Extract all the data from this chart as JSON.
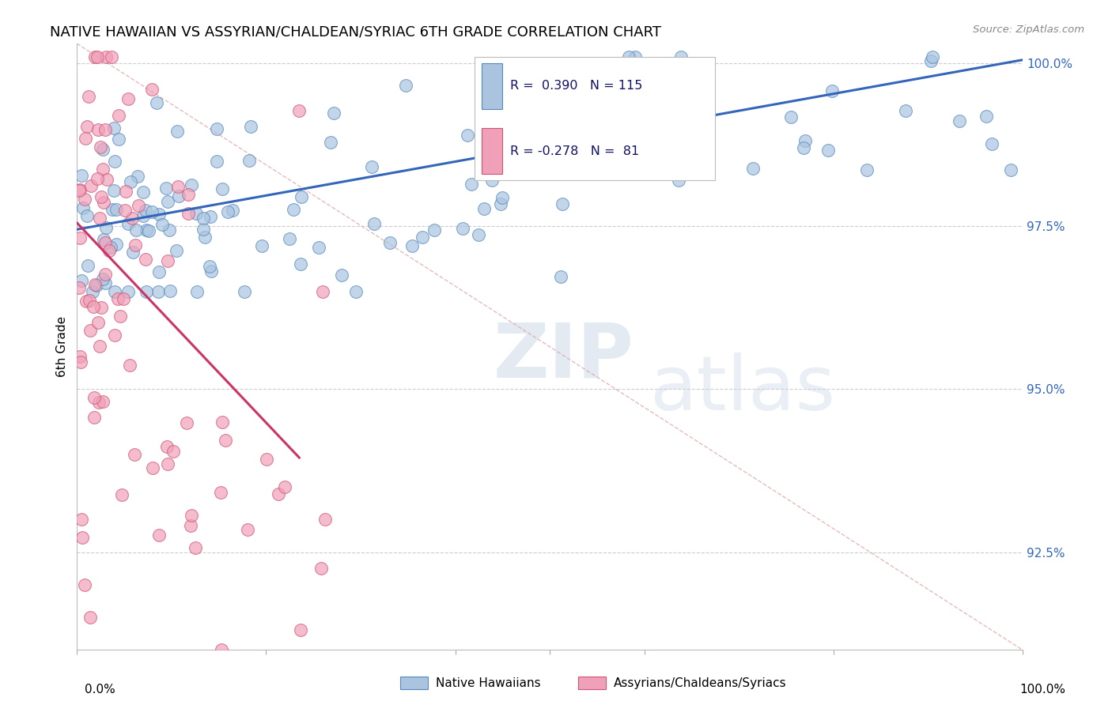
{
  "title": "NATIVE HAWAIIAN VS ASSYRIAN/CHALDEAN/SYRIAC 6TH GRADE CORRELATION CHART",
  "source": "Source: ZipAtlas.com",
  "ylabel": "6th Grade",
  "blue_color": "#aac4e0",
  "blue_edge": "#5588bb",
  "pink_color": "#f0a0b8",
  "pink_edge": "#cc5577",
  "line_blue_color": "#3366bb",
  "line_pink_color": "#cc3366",
  "diag_color": "#ddaaaa",
  "grid_color": "#cccccc",
  "ytick_color": "#3366bb",
  "legend_R_blue": "R =  0.390",
  "legend_N_blue": "N = 115",
  "legend_R_pink": "R = -0.278",
  "legend_N_pink": "N =  81",
  "watermark_zip": "ZIP",
  "watermark_atlas": "atlas",
  "xlim": [
    0.0,
    1.0
  ],
  "ylim": [
    0.91,
    1.003
  ],
  "ytick_positions": [
    0.925,
    0.95,
    0.975,
    1.0
  ],
  "ytick_labels": [
    "92.5%",
    "95.0%",
    "97.5%",
    "100.0%"
  ],
  "blue_line_x": [
    0.0,
    1.0
  ],
  "blue_line_y": [
    0.9745,
    1.0005
  ],
  "pink_line_x": [
    0.0,
    0.235
  ],
  "pink_line_y": [
    0.9755,
    0.9395
  ],
  "diag_line_x": [
    0.0,
    1.0
  ],
  "diag_line_y": [
    1.003,
    0.91
  ]
}
